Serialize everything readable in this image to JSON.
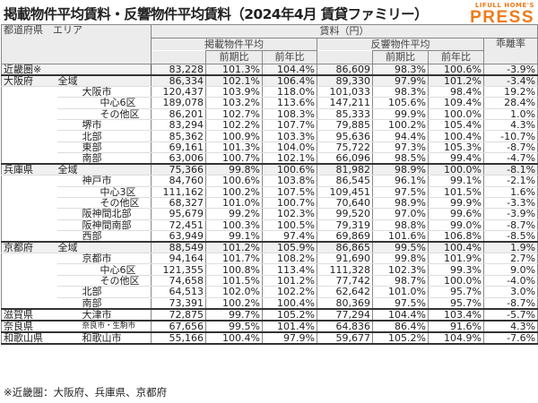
{
  "title": "掲載物件平均賃料・反響物件平均賃料（2024年4月 賃貸ファミリー）",
  "logo": {
    "small": "LIFULL HOME'S",
    "big": "PRESS",
    "color": "#f07a18"
  },
  "header": {
    "col0": "都道府県　エリア",
    "rent": "賃料（円）",
    "listed": "掲載物件平均",
    "response": "反響物件平均",
    "gap": "乖離率",
    "qoq": "前期比",
    "yoy": "前年比"
  },
  "rows": [
    {
      "pref": "近畿圏※",
      "area": "",
      "level": 0,
      "v": [
        "83,228",
        "101.3%",
        "104.4%",
        "86,609",
        "98.3%",
        "100.6%",
        "-3.9%"
      ]
    },
    {
      "pref": "大阪府",
      "area": "全域",
      "level": 0,
      "v": [
        "86,334",
        "102.1%",
        "106.4%",
        "89,330",
        "97.9%",
        "101.2%",
        "-3.4%"
      ]
    },
    {
      "pref": "",
      "area": "大阪市",
      "level": 1,
      "v": [
        "120,437",
        "103.9%",
        "118.0%",
        "101,033",
        "98.3%",
        "98.4%",
        "19.2%"
      ]
    },
    {
      "pref": "",
      "area": "中心6区",
      "level": 2,
      "v": [
        "189,078",
        "103.2%",
        "113.6%",
        "147,211",
        "105.6%",
        "109.4%",
        "28.4%"
      ]
    },
    {
      "pref": "",
      "area": "その他区",
      "level": 2,
      "v": [
        "86,201",
        "102.7%",
        "108.3%",
        "85,333",
        "99.9%",
        "100.0%",
        "1.0%"
      ]
    },
    {
      "pref": "",
      "area": "堺市",
      "level": 1,
      "v": [
        "83,294",
        "102.2%",
        "107.7%",
        "79,885",
        "100.2%",
        "105.4%",
        "4.3%"
      ]
    },
    {
      "pref": "",
      "area": "北部",
      "level": 1,
      "v": [
        "85,362",
        "100.9%",
        "103.3%",
        "95,636",
        "94.4%",
        "100.4%",
        "-10.7%"
      ]
    },
    {
      "pref": "",
      "area": "東部",
      "level": 1,
      "v": [
        "69,161",
        "101.3%",
        "104.0%",
        "75,722",
        "97.3%",
        "105.3%",
        "-8.7%"
      ]
    },
    {
      "pref": "",
      "area": "南部",
      "level": 1,
      "v": [
        "63,006",
        "100.7%",
        "102.1%",
        "66,096",
        "98.5%",
        "99.4%",
        "-4.7%"
      ]
    },
    {
      "pref": "兵庫県",
      "area": "全域",
      "level": 0,
      "v": [
        "75,366",
        "99.8%",
        "100.6%",
        "81,982",
        "98.9%",
        "100.0%",
        "-8.1%"
      ]
    },
    {
      "pref": "",
      "area": "神戸市",
      "level": 1,
      "v": [
        "84,760",
        "100.6%",
        "103.8%",
        "86,545",
        "96.1%",
        "99.1%",
        "-2.1%"
      ]
    },
    {
      "pref": "",
      "area": "中心3区",
      "level": 2,
      "v": [
        "111,162",
        "100.2%",
        "107.5%",
        "109,451",
        "97.5%",
        "101.5%",
        "1.6%"
      ]
    },
    {
      "pref": "",
      "area": "その他区",
      "level": 2,
      "v": [
        "68,327",
        "101.0%",
        "100.7%",
        "70,640",
        "98.9%",
        "99.9%",
        "-3.3%"
      ]
    },
    {
      "pref": "",
      "area": "阪神間北部",
      "level": 1,
      "v": [
        "95,679",
        "99.2%",
        "102.3%",
        "99,520",
        "97.0%",
        "99.6%",
        "-3.9%"
      ]
    },
    {
      "pref": "",
      "area": "阪神間南部",
      "level": 1,
      "v": [
        "72,451",
        "100.3%",
        "100.5%",
        "79,319",
        "98.8%",
        "99.0%",
        "-8.7%"
      ]
    },
    {
      "pref": "",
      "area": "西部",
      "level": 1,
      "v": [
        "63,949",
        "99.1%",
        "97.4%",
        "69,869",
        "101.6%",
        "106.8%",
        "-8.5%"
      ]
    },
    {
      "pref": "京都府",
      "area": "全域",
      "level": 0,
      "v": [
        "88,549",
        "101.2%",
        "105.9%",
        "86,865",
        "99.5%",
        "100.4%",
        "1.9%"
      ]
    },
    {
      "pref": "",
      "area": "京都市",
      "level": 1,
      "v": [
        "94,164",
        "101.7%",
        "108.2%",
        "91,690",
        "99.8%",
        "101.9%",
        "2.7%"
      ]
    },
    {
      "pref": "",
      "area": "中心6区",
      "level": 2,
      "v": [
        "121,355",
        "100.8%",
        "113.4%",
        "111,328",
        "102.3%",
        "99.3%",
        "9.0%"
      ]
    },
    {
      "pref": "",
      "area": "その他区",
      "level": 2,
      "v": [
        "74,658",
        "101.5%",
        "101.2%",
        "77,742",
        "98.7%",
        "100.0%",
        "-4.0%"
      ]
    },
    {
      "pref": "",
      "area": "北部",
      "level": 1,
      "v": [
        "64,513",
        "102.0%",
        "102.2%",
        "62,642",
        "101.0%",
        "95.7%",
        "3.0%"
      ]
    },
    {
      "pref": "",
      "area": "南部",
      "level": 1,
      "v": [
        "73,391",
        "100.2%",
        "100.4%",
        "80,369",
        "97.5%",
        "95.7%",
        "-8.7%"
      ]
    },
    {
      "pref": "滋賀県",
      "area": "大津市",
      "level": 1,
      "v": [
        "72,875",
        "99.7%",
        "105.2%",
        "77,294",
        "104.4%",
        "103.4%",
        "-5.7%"
      ]
    },
    {
      "pref": "奈良県",
      "area": "奈良市・生駒市",
      "level": 1,
      "small": true,
      "v": [
        "67,656",
        "99.5%",
        "101.4%",
        "64,836",
        "86.4%",
        "91.6%",
        "4.3%"
      ]
    },
    {
      "pref": "和歌山県",
      "area": "和歌山市",
      "level": 1,
      "v": [
        "55,166",
        "100.4%",
        "97.9%",
        "59,677",
        "105.2%",
        "104.9%",
        "-7.6%"
      ]
    }
  ],
  "footnote": "※近畿圏：大阪府、兵庫県、京都府"
}
